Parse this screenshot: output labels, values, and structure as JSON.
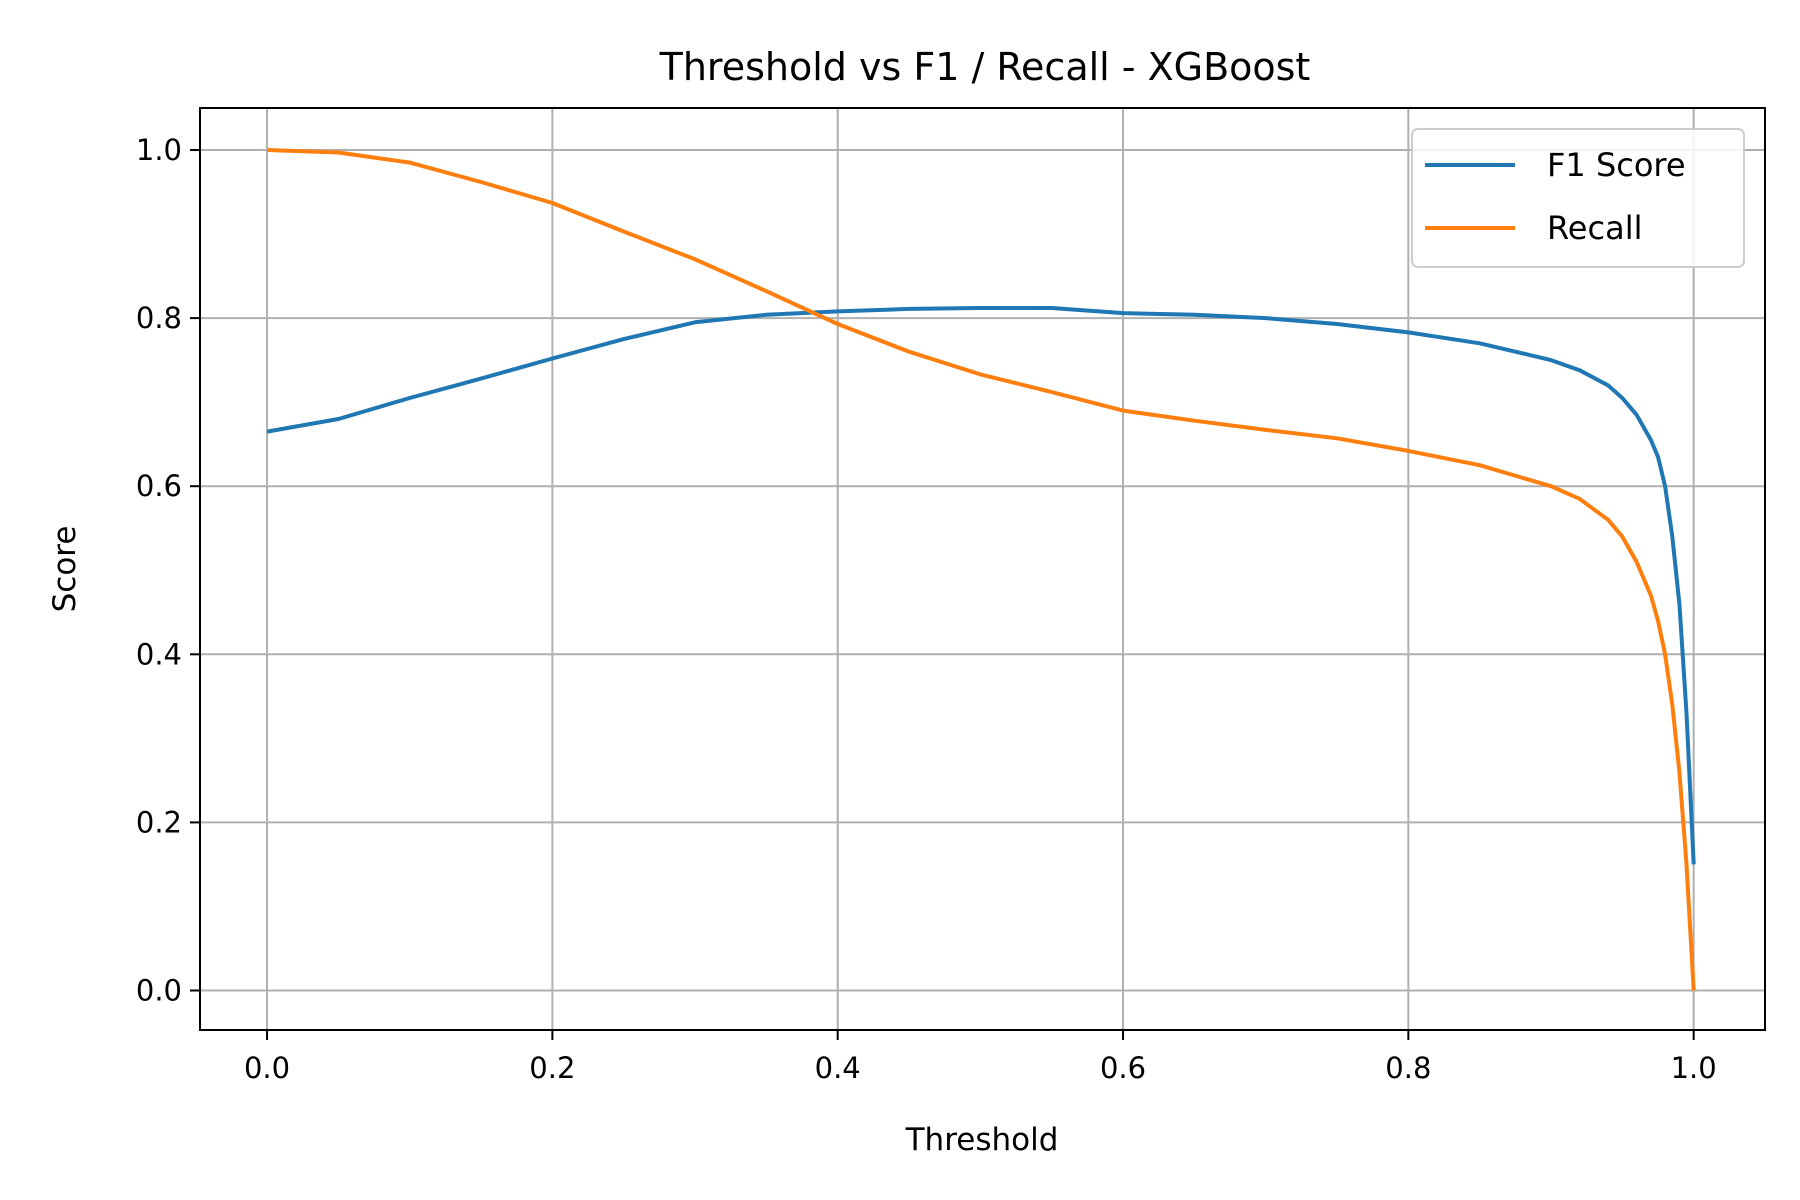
{
  "chart_data": {
    "type": "line",
    "title": "Threshold vs F1 / Recall - XGBoost",
    "xlabel": "Threshold",
    "ylabel": "Score",
    "xlim": [
      -0.047,
      1.05
    ],
    "ylim": [
      -0.047,
      1.05
    ],
    "xticks": [
      0.0,
      0.2,
      0.4,
      0.6,
      0.8,
      1.0
    ],
    "xtick_labels": [
      "0.0",
      "0.2",
      "0.4",
      "0.6",
      "0.8",
      "1.0"
    ],
    "yticks": [
      0.0,
      0.2,
      0.4,
      0.6,
      0.8,
      1.0
    ],
    "ytick_labels": [
      "0.0",
      "0.2",
      "0.4",
      "0.6",
      "0.8",
      "1.0"
    ],
    "grid": true,
    "legend": "top-right",
    "series": [
      {
        "name": "F1 Score",
        "color": "#1f77b4",
        "x": [
          0.0,
          0.05,
          0.1,
          0.15,
          0.2,
          0.25,
          0.3,
          0.35,
          0.4,
          0.45,
          0.5,
          0.55,
          0.6,
          0.65,
          0.7,
          0.75,
          0.8,
          0.85,
          0.9,
          0.92,
          0.94,
          0.95,
          0.96,
          0.97,
          0.975,
          0.98,
          0.985,
          0.99,
          0.995,
          1.0
        ],
        "y": [
          0.665,
          0.68,
          0.705,
          0.728,
          0.752,
          0.775,
          0.795,
          0.804,
          0.808,
          0.811,
          0.812,
          0.812,
          0.806,
          0.804,
          0.8,
          0.793,
          0.783,
          0.77,
          0.75,
          0.738,
          0.72,
          0.705,
          0.685,
          0.655,
          0.635,
          0.6,
          0.54,
          0.46,
          0.33,
          0.15
        ]
      },
      {
        "name": "Recall",
        "color": "#ff7f0e",
        "x": [
          0.0,
          0.05,
          0.1,
          0.15,
          0.2,
          0.25,
          0.3,
          0.35,
          0.4,
          0.45,
          0.5,
          0.55,
          0.6,
          0.65,
          0.7,
          0.75,
          0.8,
          0.85,
          0.9,
          0.92,
          0.94,
          0.95,
          0.96,
          0.97,
          0.975,
          0.98,
          0.985,
          0.99,
          0.995,
          1.0
        ],
        "y": [
          1.0,
          0.997,
          0.985,
          0.962,
          0.937,
          0.903,
          0.87,
          0.832,
          0.793,
          0.76,
          0.733,
          0.712,
          0.69,
          0.678,
          0.667,
          0.657,
          0.642,
          0.625,
          0.6,
          0.585,
          0.56,
          0.54,
          0.51,
          0.47,
          0.44,
          0.4,
          0.34,
          0.26,
          0.15,
          0.0
        ]
      }
    ]
  }
}
